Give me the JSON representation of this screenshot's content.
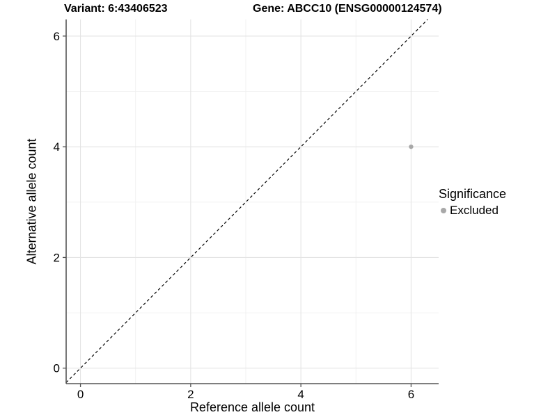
{
  "header": {
    "variant_title": "Variant: 6:43406523",
    "gene_title": "Gene: ABCC10 (ENSG00000124574)"
  },
  "chart_data": {
    "type": "scatter",
    "xlabel": "Reference allele count",
    "ylabel": "Alternative allele count",
    "xticks": [
      0,
      2,
      4,
      6
    ],
    "yticks": [
      0,
      2,
      4,
      6
    ],
    "minor_xticks": [
      1,
      3,
      5
    ],
    "minor_yticks": [
      1,
      3,
      5
    ],
    "xlim": [
      -0.26,
      6.5
    ],
    "ylim": [
      -0.28,
      6.3
    ],
    "grid": true,
    "points": [
      {
        "x": 6,
        "y": 4,
        "series": "Excluded"
      }
    ],
    "identity_line": {
      "style": "dashed",
      "slope": 1,
      "intercept": 0
    },
    "legend": {
      "position": "right",
      "title": "Significance",
      "entries": [
        {
          "label": "Excluded",
          "color": "#a8a8a8"
        }
      ]
    },
    "style": {
      "point_color": "#a8a8a8",
      "point_radius": 3.2,
      "ref_line_color": "#000000",
      "axis_line_color": "#555555",
      "grid_major_color": "#e4e4e4",
      "grid_minor_color": "#f0f0f0",
      "text_color": "#000000",
      "background": "#ffffff"
    }
  }
}
